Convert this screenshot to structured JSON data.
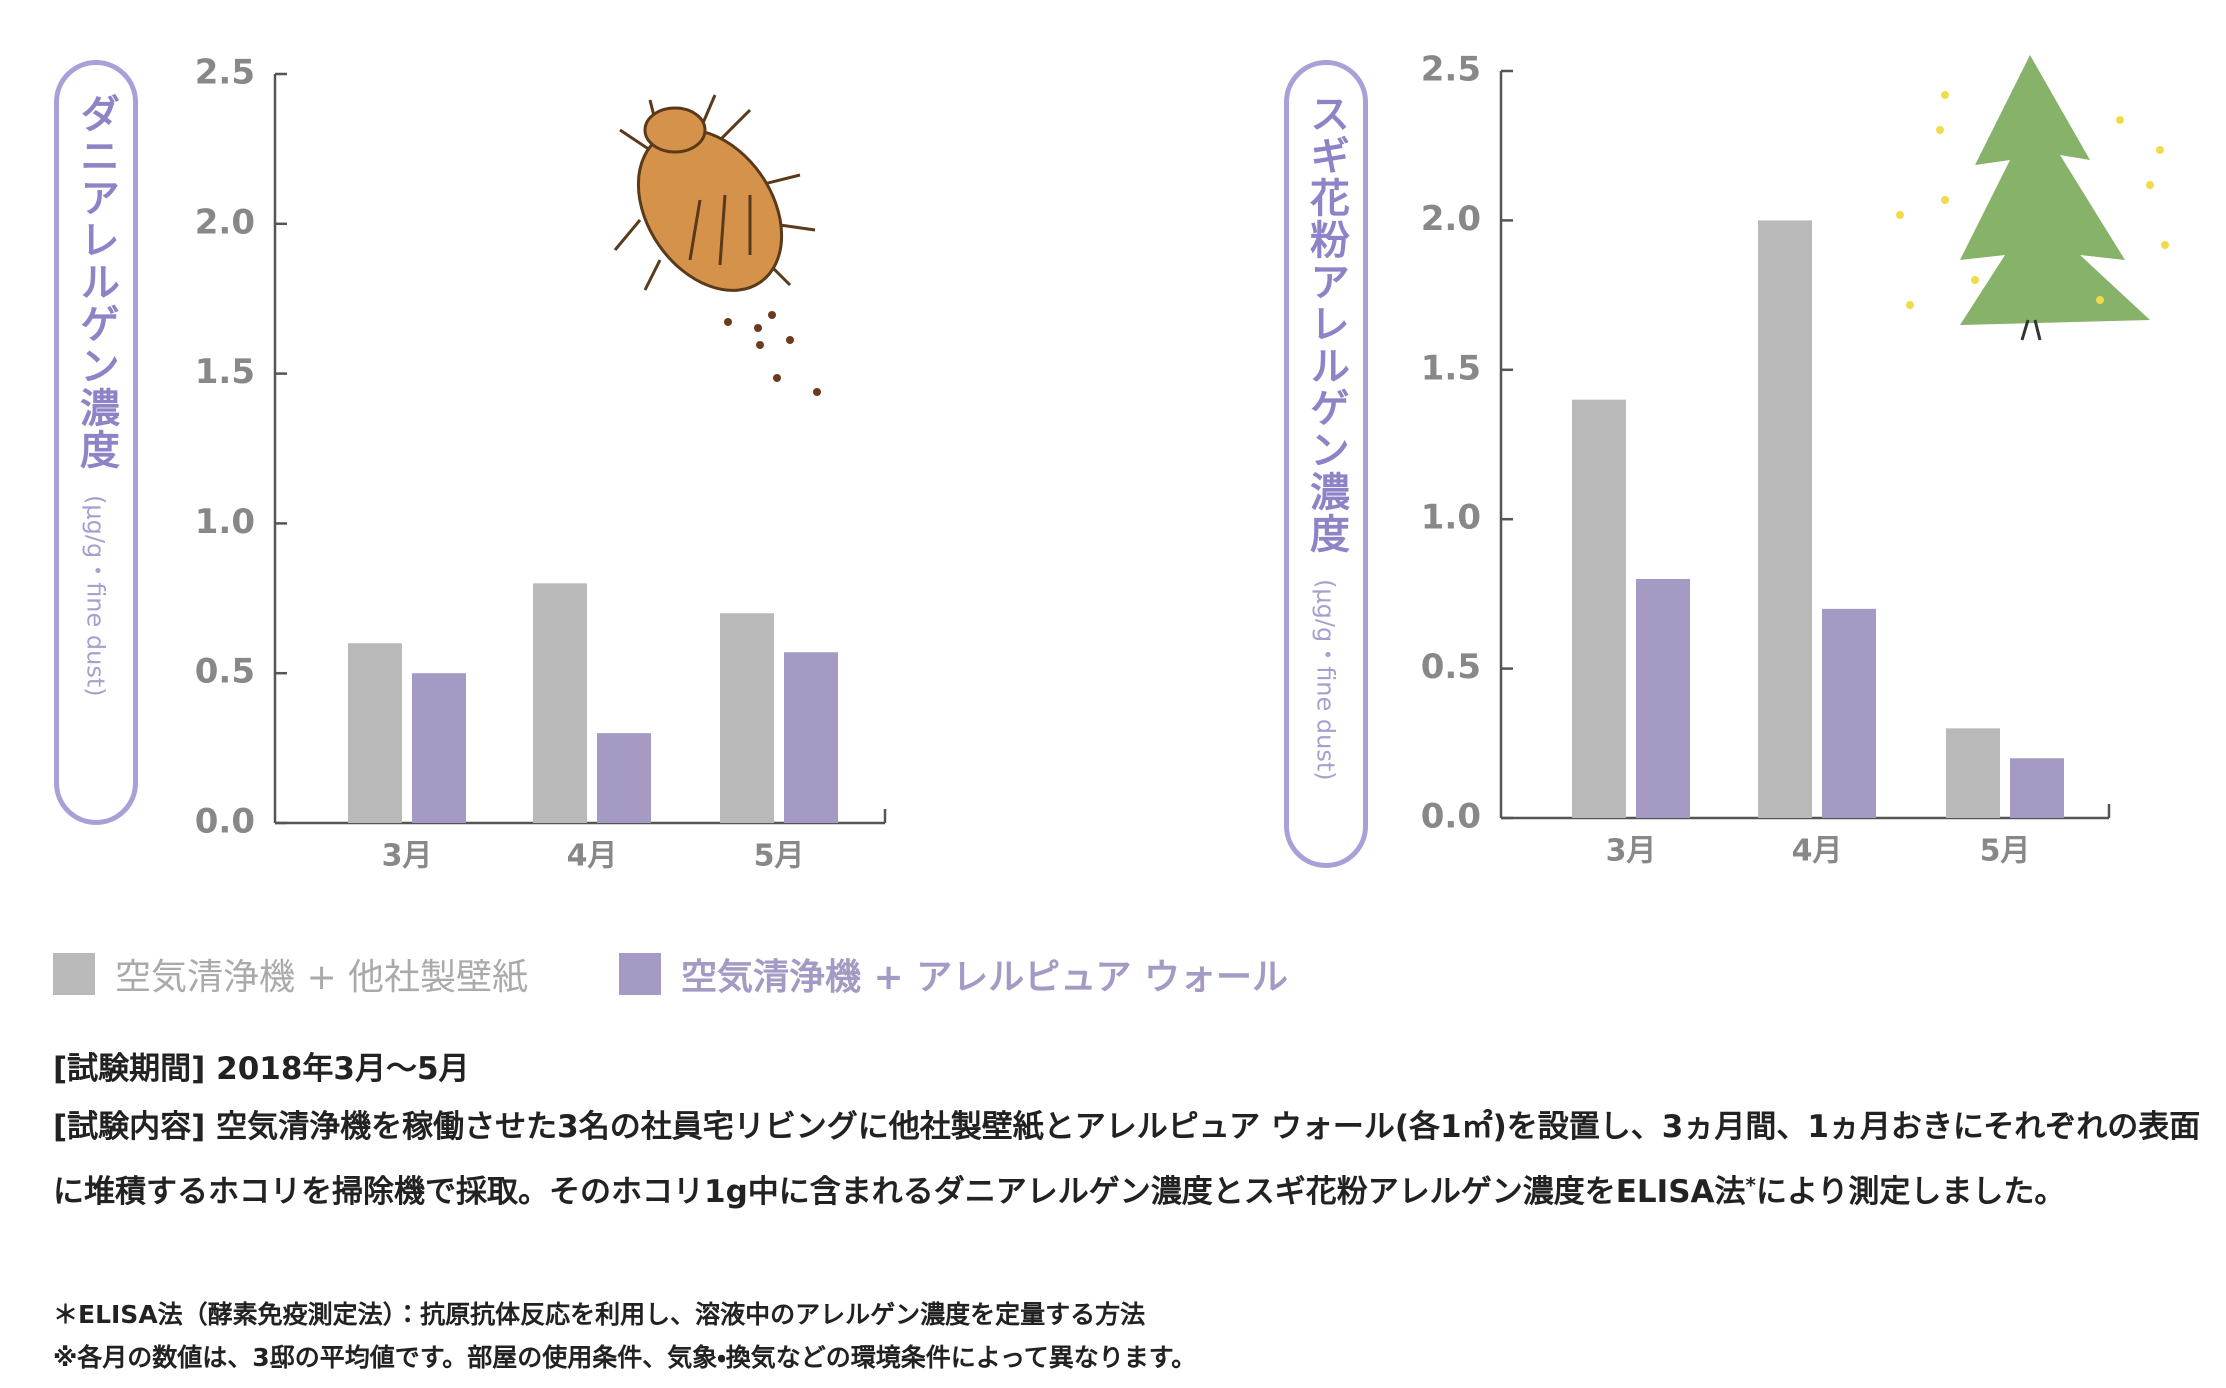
{
  "chart_data": [
    {
      "type": "bar",
      "y_label": "ダニアレルゲン濃度",
      "y_unit": "(μg/g・fine dust)",
      "categories": [
        "3月",
        "4月",
        "5月"
      ],
      "series": [
        {
          "name": "空気清浄機 + 他社製壁紙",
          "color": "#b9b9b9",
          "values": [
            0.6,
            0.8,
            0.7
          ]
        },
        {
          "name": "空気清浄機 + アレルピュア ウォール",
          "color": "#a59ac4",
          "values": [
            0.5,
            0.3,
            0.57
          ]
        }
      ],
      "ylim": [
        0,
        2.5
      ],
      "yticks": [
        {
          "value": 0,
          "label": "0.0"
        },
        0.5,
        {
          "value": 1,
          "label": "1.0"
        },
        1.5,
        {
          "value": 2,
          "label": "2.0"
        },
        2.5
      ]
    },
    {
      "type": "bar",
      "y_label": "スギ花粉アレルゲン濃度",
      "y_unit": "(μg/g・fine dust)",
      "categories": [
        "3月",
        "4月",
        "5月"
      ],
      "series": [
        {
          "color": "#b9b9b9",
          "values": [
            1.4,
            2.0,
            0.3
          ]
        },
        {
          "color": "#a59ac4",
          "values": [
            0.8,
            0.7,
            0.2
          ]
        }
      ],
      "ylim": [
        0,
        2.5
      ],
      "yticks": [
        {
          "value": 0,
          "label": "0.0"
        },
        0.5,
        {
          "value": 1,
          "label": "1.0"
        },
        1.5,
        {
          "value": 2,
          "label": "2.0"
        },
        2.5
      ]
    }
  ],
  "notes": {
    "period": "[試験期間] 2018年3月〜5月",
    "content_before": "[試験内容] 空気清浄機を稼働させた3名の社員宅リビングに他社製壁紙とアレルピュア ウォール(各1㎡)を設置し、3ヵ月間、1ヵ月おきにそれぞれの表面に堆積するホコリを掃除機で採取。そのホコリ1g中に含まれるダニアレルゲン濃度とスギ花粉アレルゲン濃度をELISA法",
    "content_mark": "*",
    "content_after": "により測定しました。",
    "footnote1": "＊ELISA法（酵素免疫測定法）：抗原抗体反応を利用し、溶液中のアレルゲン濃度を定量する方法",
    "footnote2": "※各月の数値は、3邸の平均値です。部屋の使用条件、気象・換気などの環境条件によって異なります。"
  }
}
